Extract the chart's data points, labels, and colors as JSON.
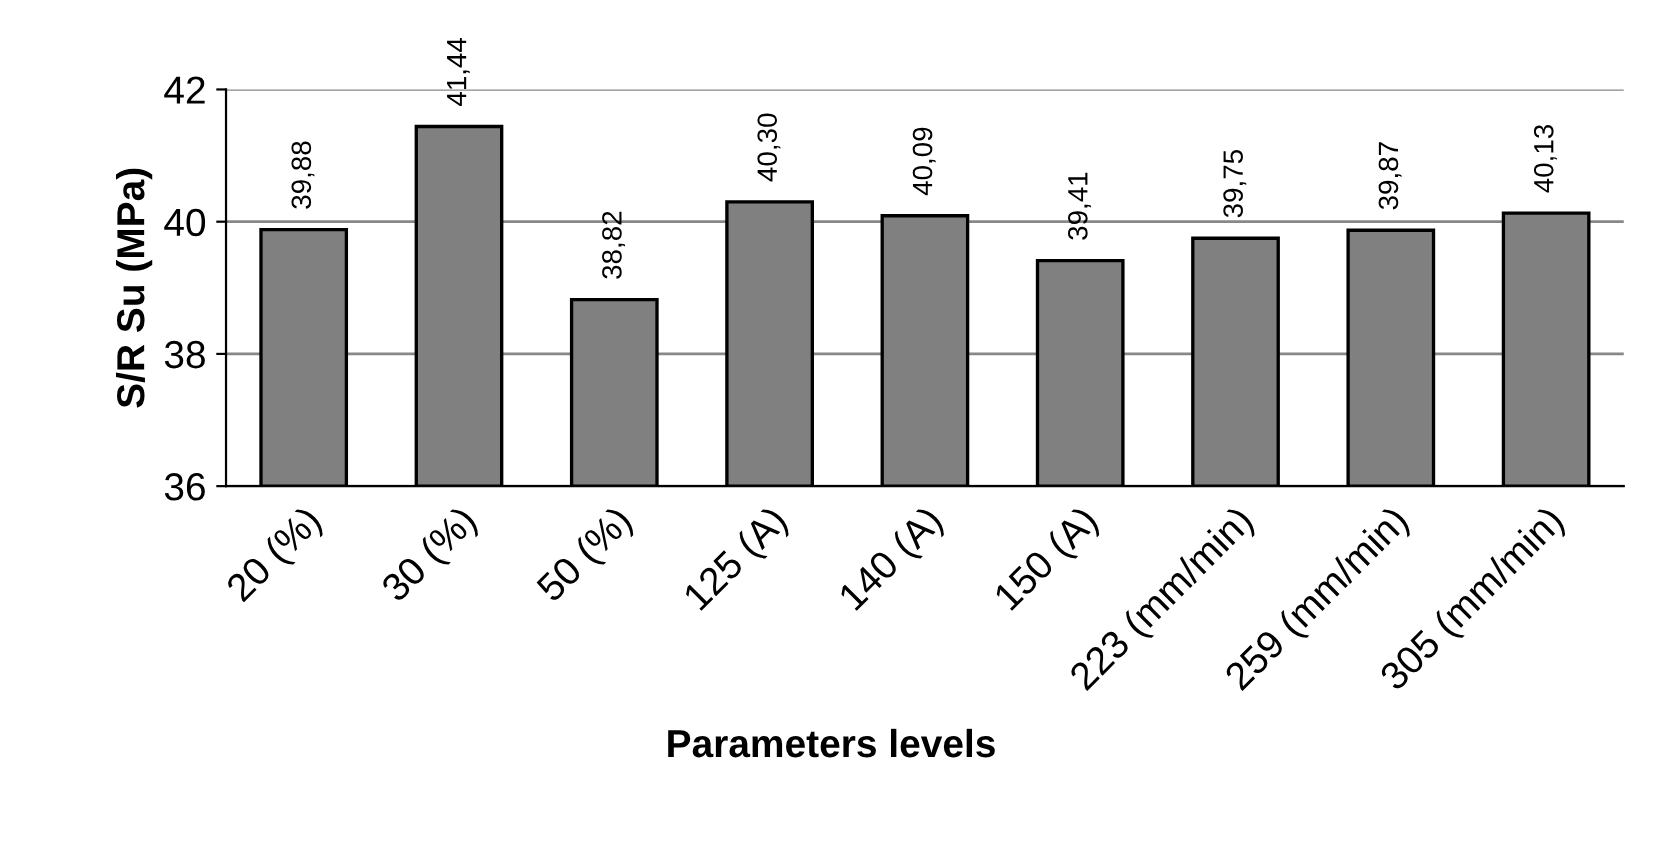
{
  "chart_data": {
    "type": "bar",
    "xlabel": "Parameters levels",
    "ylabel": "S/R Su (MPa)",
    "categories": [
      "20 (%)",
      "30 (%)",
      "50 (%)",
      "125 (A)",
      "140 (A)",
      "150 (A)",
      "223 (mm/min)",
      "259 (mm/min)",
      "305 (mm/min)"
    ],
    "values": [
      39.88,
      41.44,
      38.82,
      40.3,
      40.09,
      39.41,
      39.75,
      39.87,
      40.13
    ],
    "value_labels": [
      "39,88",
      "41,44",
      "38,82",
      "40,30",
      "40,09",
      "39,41",
      "39,75",
      "39,87",
      "40,13"
    ],
    "color": "#808080",
    "ylim": [
      36,
      42
    ],
    "yticks": [
      36,
      38,
      40,
      42
    ],
    "grid": "y"
  }
}
